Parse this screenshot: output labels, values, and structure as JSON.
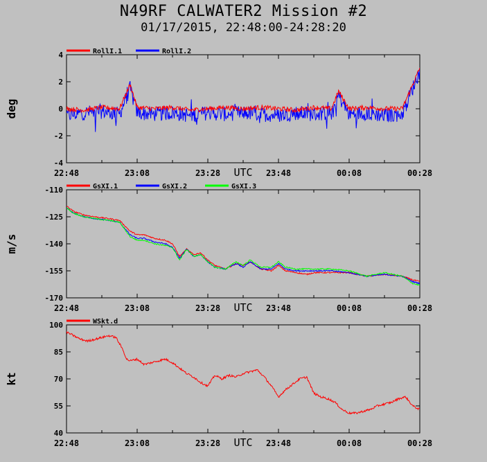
{
  "title": "N49RF CALWATER2 Mission #2",
  "subtitle": "01/17/2015, 22:48:00-24:28:20",
  "chart_data": [
    {
      "type": "line",
      "ylabel": "deg",
      "xlabel": "UTC",
      "ylim": [
        -4,
        4
      ],
      "yticks": [
        "4",
        "2",
        "0",
        "-2",
        "-4"
      ],
      "xticks": [
        "22:48",
        "23:08",
        "23:28",
        "23:48",
        "00:08",
        "00:28"
      ],
      "legend_position": "top-left",
      "series": [
        {
          "name": "RollI.1",
          "color": "#ff0000",
          "x_minutes": [
            0,
            5,
            10,
            15,
            18,
            20,
            25,
            30,
            35,
            40,
            45,
            50,
            55,
            60,
            65,
            70,
            75,
            77,
            80,
            85,
            90,
            95,
            100
          ],
          "values": [
            0.0,
            -0.1,
            0.1,
            0.0,
            1.8,
            0.1,
            0.0,
            0.1,
            -0.1,
            0.0,
            0.1,
            0.0,
            0.1,
            0.0,
            -0.1,
            0.1,
            0.0,
            1.3,
            0.0,
            0.1,
            0.0,
            0.0,
            3.0
          ]
        },
        {
          "name": "RollI.2",
          "color": "#0000ff",
          "x_minutes": [
            0,
            5,
            10,
            15,
            18,
            20,
            25,
            30,
            35,
            40,
            45,
            50,
            55,
            60,
            65,
            70,
            75,
            77,
            80,
            85,
            90,
            95,
            100
          ],
          "values": [
            -0.5,
            -0.3,
            -0.2,
            -0.4,
            1.5,
            -0.3,
            -0.4,
            -0.3,
            -0.5,
            -0.3,
            -0.4,
            -0.3,
            -0.4,
            -0.5,
            -0.3,
            -0.4,
            -0.3,
            1.0,
            -0.4,
            -0.3,
            -0.5,
            -0.4,
            2.8
          ]
        }
      ]
    },
    {
      "type": "line",
      "ylabel": "m/s",
      "xlabel": "UTC",
      "ylim": [
        -170,
        -110
      ],
      "yticks": [
        "-110",
        "-125",
        "-140",
        "-155",
        "-170"
      ],
      "xticks": [
        "22:48",
        "23:08",
        "23:28",
        "23:48",
        "00:08",
        "00:28"
      ],
      "legend_position": "top-left",
      "series": [
        {
          "name": "GsXI.1",
          "color": "#ff0000",
          "x_minutes": [
            0,
            2,
            5,
            8,
            12,
            15,
            18,
            20,
            22,
            25,
            28,
            30,
            32,
            34,
            36,
            38,
            40,
            42,
            45,
            48,
            50,
            52,
            55,
            58,
            60,
            62,
            65,
            68,
            70,
            75,
            80,
            85,
            90,
            95,
            98,
            100
          ],
          "values": [
            -119,
            -122,
            -124,
            -125,
            -126,
            -127,
            -133,
            -135,
            -135,
            -137,
            -138,
            -140,
            -147,
            -143,
            -146,
            -145,
            -149,
            -152,
            -154,
            -151,
            -152,
            -150,
            -154,
            -155,
            -152,
            -155,
            -156,
            -157,
            -156,
            -156,
            -156,
            -158,
            -157,
            -158,
            -160,
            -161
          ]
        },
        {
          "name": "GsXI.2",
          "color": "#0000ff",
          "x_minutes": [
            0,
            2,
            5,
            8,
            12,
            15,
            18,
            20,
            22,
            25,
            28,
            30,
            32,
            34,
            36,
            38,
            40,
            42,
            45,
            48,
            50,
            52,
            55,
            58,
            60,
            62,
            65,
            68,
            70,
            75,
            80,
            85,
            90,
            95,
            98,
            100
          ],
          "values": [
            -120,
            -123,
            -125,
            -126,
            -127,
            -128,
            -135,
            -137,
            -137,
            -139,
            -140,
            -142,
            -148,
            -143,
            -147,
            -146,
            -150,
            -153,
            -154,
            -151,
            -153,
            -150,
            -154,
            -154,
            -151,
            -154,
            -155,
            -155,
            -155,
            -155,
            -156,
            -158,
            -157,
            -158,
            -161,
            -162
          ]
        },
        {
          "name": "GsXI.3",
          "color": "#00ff00",
          "x_minutes": [
            0,
            2,
            5,
            8,
            12,
            15,
            18,
            20,
            22,
            25,
            28,
            30,
            32,
            34,
            36,
            38,
            40,
            42,
            45,
            48,
            50,
            52,
            55,
            58,
            60,
            62,
            65,
            68,
            70,
            75,
            80,
            85,
            90,
            95,
            98,
            100
          ],
          "values": [
            -120,
            -123,
            -125,
            -126,
            -127,
            -128,
            -136,
            -138,
            -138,
            -140,
            -141,
            -142,
            -149,
            -143,
            -147,
            -146,
            -150,
            -153,
            -154,
            -150,
            -152,
            -149,
            -153,
            -153,
            -150,
            -153,
            -154,
            -154,
            -154,
            -154,
            -155,
            -158,
            -156,
            -158,
            -162,
            -163
          ]
        }
      ]
    },
    {
      "type": "line",
      "ylabel": "kt",
      "xlabel": "UTC",
      "ylim": [
        40,
        100
      ],
      "yticks": [
        "100",
        "85",
        "70",
        "55",
        "40"
      ],
      "xticks": [
        "22:48",
        "23:08",
        "23:28",
        "23:48",
        "00:08",
        "00:28"
      ],
      "legend_position": "top-left",
      "series": [
        {
          "name": "WSkt.d",
          "color": "#ff0000",
          "x_minutes": [
            0,
            2,
            4,
            6,
            8,
            10,
            12,
            14,
            16,
            17,
            18,
            20,
            22,
            24,
            26,
            28,
            30,
            32,
            34,
            36,
            38,
            40,
            42,
            44,
            46,
            48,
            50,
            52,
            54,
            56,
            58,
            60,
            62,
            64,
            66,
            68,
            70,
            72,
            74,
            76,
            78,
            80,
            82,
            84,
            86,
            88,
            90,
            92,
            94,
            96,
            98,
            100
          ],
          "values": [
            96,
            94,
            92,
            91,
            92,
            93,
            94,
            93,
            86,
            81,
            80,
            81,
            78,
            79,
            80,
            81,
            79,
            76,
            73,
            71,
            68,
            66,
            72,
            70,
            72,
            71,
            73,
            74,
            75,
            71,
            66,
            60,
            64,
            67,
            70,
            71,
            62,
            60,
            59,
            57,
            53,
            51,
            51,
            52,
            53,
            55,
            56,
            57,
            59,
            60,
            55,
            53
          ]
        }
      ]
    }
  ]
}
